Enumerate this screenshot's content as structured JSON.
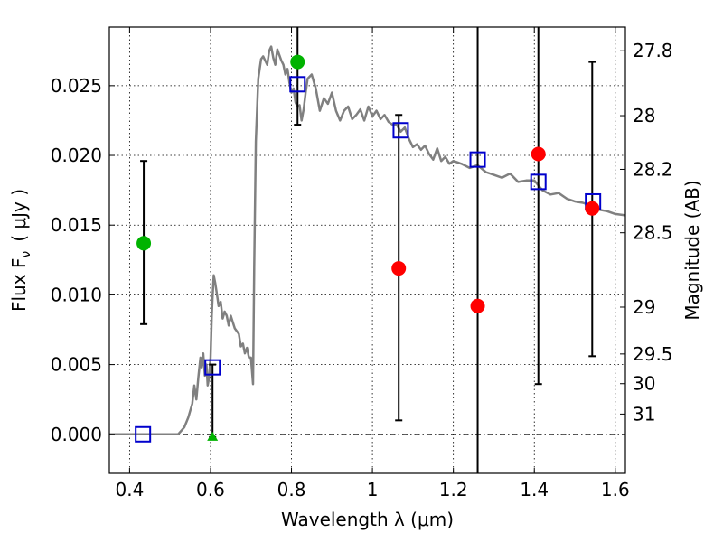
{
  "chart_data": {
    "type": "scatter",
    "xlabel": "Wavelength  λ (μm)",
    "ylabel": "Flux  F",
    "ylabel_sub": "ν",
    "ylabel_units": "( μJy )",
    "right_ylabel": "Magnitude (AB)",
    "xlim": [
      0.35,
      1.625
    ],
    "ylim": [
      -0.0028,
      0.0292
    ],
    "x_ticks": [
      0.4,
      0.6,
      0.8,
      1.0,
      1.2,
      1.4,
      1.6
    ],
    "x_tick_labels": [
      "0.4",
      "0.6",
      "0.8",
      "1",
      "1.2",
      "1.4",
      "1.6"
    ],
    "y_ticks": [
      0.0,
      0.005,
      0.01,
      0.015,
      0.02,
      0.025
    ],
    "y_tick_labels": [
      "0.000",
      "0.005",
      "0.010",
      "0.015",
      "0.020",
      "0.025"
    ],
    "right_ticks": [
      {
        "label": "27.8",
        "flux": 0.0275
      },
      {
        "label": "28",
        "flux": 0.02285
      },
      {
        "label": "28.2",
        "flux": 0.019
      },
      {
        "label": "28.5",
        "flux": 0.01445
      },
      {
        "label": "29",
        "flux": 0.00912
      },
      {
        "label": "29.5",
        "flux": 0.00576
      },
      {
        "label": "30",
        "flux": 0.00363
      },
      {
        "label": "31",
        "flux": 0.00145
      }
    ],
    "grid": true,
    "zero_line": true,
    "colors": {
      "model": "#808080",
      "open_squares": "#0000cc",
      "green_points": "#00b300",
      "red_points": "#ff0000",
      "error_bars": "#000000"
    },
    "model_spectrum": {
      "x": [
        0.35,
        0.5,
        0.52,
        0.535,
        0.545,
        0.555,
        0.56,
        0.565,
        0.57,
        0.575,
        0.578,
        0.582,
        0.586,
        0.59,
        0.593,
        0.596,
        0.6,
        0.603,
        0.605,
        0.608,
        0.612,
        0.617,
        0.62,
        0.625,
        0.63,
        0.635,
        0.64,
        0.645,
        0.65,
        0.66,
        0.67,
        0.675,
        0.68,
        0.685,
        0.69,
        0.695,
        0.7,
        0.705,
        0.708,
        0.712,
        0.718,
        0.725,
        0.73,
        0.735,
        0.74,
        0.745,
        0.75,
        0.755,
        0.76,
        0.765,
        0.77,
        0.775,
        0.78,
        0.785,
        0.79,
        0.795,
        0.8,
        0.805,
        0.81,
        0.815,
        0.82,
        0.825,
        0.83,
        0.835,
        0.84,
        0.85,
        0.86,
        0.87,
        0.88,
        0.89,
        0.9,
        0.91,
        0.92,
        0.93,
        0.94,
        0.95,
        0.96,
        0.97,
        0.98,
        0.99,
        1.0,
        1.01,
        1.02,
        1.03,
        1.04,
        1.05,
        1.06,
        1.07,
        1.08,
        1.09,
        1.1,
        1.11,
        1.12,
        1.13,
        1.14,
        1.15,
        1.16,
        1.17,
        1.18,
        1.19,
        1.2,
        1.22,
        1.24,
        1.26,
        1.28,
        1.3,
        1.32,
        1.34,
        1.36,
        1.38,
        1.4,
        1.42,
        1.44,
        1.46,
        1.48,
        1.5,
        1.52,
        1.54,
        1.56,
        1.58,
        1.6,
        1.625
      ],
      "y": [
        0.0,
        0.0,
        0.0,
        0.0005,
        0.0012,
        0.0022,
        0.0035,
        0.0025,
        0.0041,
        0.0055,
        0.0048,
        0.0058,
        0.0042,
        0.005,
        0.0035,
        0.004,
        0.0055,
        0.0085,
        0.0098,
        0.0114,
        0.0108,
        0.0098,
        0.0092,
        0.0095,
        0.0083,
        0.0088,
        0.0085,
        0.0078,
        0.0085,
        0.0076,
        0.0072,
        0.0063,
        0.0065,
        0.0058,
        0.0062,
        0.0055,
        0.0055,
        0.0036,
        0.012,
        0.021,
        0.0255,
        0.0269,
        0.0271,
        0.0268,
        0.0265,
        0.0275,
        0.0278,
        0.027,
        0.0265,
        0.0276,
        0.0272,
        0.0268,
        0.0265,
        0.0258,
        0.0262,
        0.0252,
        0.0245,
        0.0248,
        0.0238,
        0.0235,
        0.0236,
        0.0225,
        0.0233,
        0.0245,
        0.0255,
        0.0258,
        0.0248,
        0.0232,
        0.0241,
        0.0237,
        0.0245,
        0.0232,
        0.0225,
        0.0232,
        0.0235,
        0.0226,
        0.0229,
        0.0233,
        0.0225,
        0.0235,
        0.0228,
        0.0232,
        0.0226,
        0.0229,
        0.0224,
        0.0222,
        0.0222,
        0.0217,
        0.022,
        0.0212,
        0.0206,
        0.0208,
        0.0204,
        0.0207,
        0.0201,
        0.0197,
        0.0205,
        0.0196,
        0.0199,
        0.0194,
        0.0196,
        0.0194,
        0.0191,
        0.0193,
        0.0188,
        0.0186,
        0.0184,
        0.0187,
        0.0181,
        0.0182,
        0.0182,
        0.0175,
        0.0172,
        0.0173,
        0.0169,
        0.0167,
        0.0166,
        0.0164,
        0.0161,
        0.016,
        0.0158,
        0.0157
      ]
    },
    "series": [
      {
        "marker": "open-square",
        "x": [
          0.433,
          0.605,
          0.815,
          1.07,
          1.26,
          1.41,
          1.545
        ],
        "y": [
          0.0,
          0.0048,
          0.0251,
          0.0218,
          0.0197,
          0.0181,
          0.0167
        ]
      },
      {
        "marker": "filled-circle",
        "color_key": "green_points",
        "x": [
          0.435,
          0.815
        ],
        "y": [
          0.0137,
          0.0267
        ],
        "yerr_low": [
          0.0079,
          0.0222
        ],
        "yerr_high": [
          0.0196,
          0.0292
        ]
      },
      {
        "marker": "filled-triangle",
        "color_key": "green_points",
        "x": [
          0.605
        ],
        "y": [
          -0.0002
        ],
        "yerr_low": [
          -0.0002
        ],
        "yerr_high": [
          0.005
        ]
      },
      {
        "marker": "filled-circle",
        "color_key": "red_points",
        "x": [
          1.065,
          1.26,
          1.41,
          1.543
        ],
        "y": [
          0.0119,
          0.0092,
          0.0201,
          0.0162
        ],
        "yerr_low": [
          0.001,
          -0.0028,
          0.0036,
          0.0056
        ],
        "yerr_high": [
          0.0229,
          0.0292,
          0.0292,
          0.0267
        ]
      }
    ]
  }
}
